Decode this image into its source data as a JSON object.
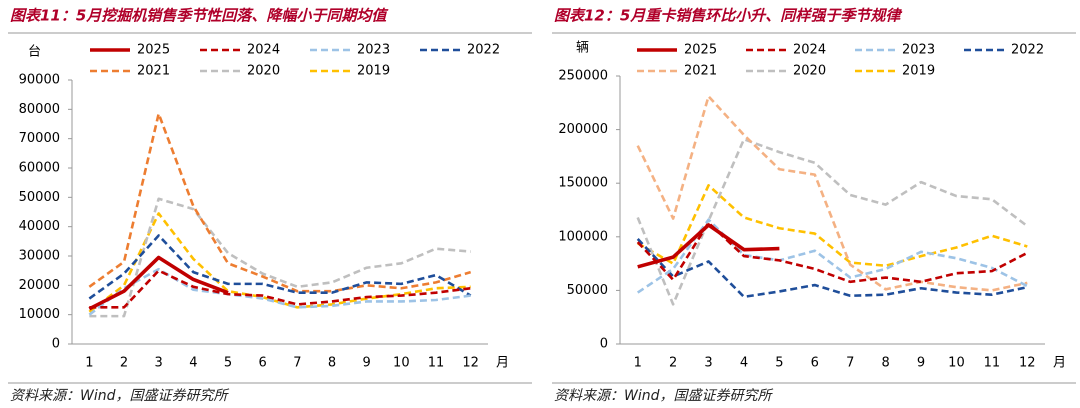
{
  "chart_data": [
    {
      "type": "line",
      "title": "图表11：5月挖掘机销售季节性回落、降幅小于同期均值",
      "source": "资料来源：Wind，国盛证券研究所",
      "ylabel": "台",
      "xlabel": "月",
      "categories": [
        "1",
        "2",
        "3",
        "4",
        "5",
        "6",
        "7",
        "8",
        "9",
        "10",
        "11",
        "12"
      ],
      "ylim": [
        0,
        90000
      ],
      "yticks": [
        0,
        10000,
        20000,
        30000,
        40000,
        50000,
        60000,
        70000,
        80000,
        90000
      ],
      "series": [
        {
          "name": "2025",
          "color": "#c00000",
          "dashed": false,
          "values": [
            12000,
            18000,
            29500,
            22000,
            17500,
            null,
            null,
            null,
            null,
            null,
            null,
            null
          ]
        },
        {
          "name": "2024",
          "color": "#c00000",
          "dashed": true,
          "values": [
            12500,
            12500,
            25000,
            19500,
            17000,
            16500,
            13500,
            14500,
            16000,
            16500,
            17500,
            19000
          ]
        },
        {
          "name": "2023",
          "color": "#9dc3e6",
          "dashed": true,
          "values": [
            10000,
            19000,
            25500,
            18500,
            17000,
            15500,
            12500,
            13000,
            14500,
            14500,
            15000,
            16500
          ]
        },
        {
          "name": "2022",
          "color": "#1f4e9a",
          "dashed": true,
          "values": [
            15500,
            24000,
            37000,
            24500,
            20500,
            20500,
            17500,
            17500,
            21000,
            20500,
            23500,
            16500
          ]
        },
        {
          "name": "2021",
          "color": "#ed7d31",
          "dashed": true,
          "values": [
            19500,
            28000,
            78500,
            47000,
            27500,
            23000,
            18000,
            18000,
            20000,
            19000,
            21000,
            24500
          ]
        },
        {
          "name": "2020",
          "color": "#bfbfbf",
          "dashed": true,
          "values": [
            9500,
            9500,
            49500,
            46000,
            31000,
            24000,
            19500,
            21000,
            26000,
            27500,
            32500,
            31500
          ]
        },
        {
          "name": "2019",
          "color": "#ffc000",
          "dashed": true,
          "values": [
            11000,
            20000,
            44500,
            29000,
            18000,
            16000,
            12500,
            13500,
            15500,
            17000,
            19000,
            19500
          ]
        }
      ]
    },
    {
      "type": "line",
      "title": "图表12：5月重卡销售环比小升、同样强于季节规律",
      "source": "资料来源：Wind，国盛证券研究所",
      "ylabel": "辆",
      "xlabel": "月",
      "categories": [
        "1",
        "2",
        "3",
        "4",
        "5",
        "6",
        "7",
        "8",
        "9",
        "10",
        "11",
        "12"
      ],
      "ylim": [
        0,
        250000
      ],
      "yticks": [
        0,
        50000,
        100000,
        150000,
        200000,
        250000
      ],
      "series": [
        {
          "name": "2025",
          "color": "#c00000",
          "dashed": false,
          "values": [
            72000,
            81000,
            111000,
            88000,
            89000,
            null,
            null,
            null,
            null,
            null,
            null,
            null
          ]
        },
        {
          "name": "2024",
          "color": "#c00000",
          "dashed": true,
          "values": [
            95000,
            60000,
            113000,
            82000,
            78000,
            70000,
            58000,
            62000,
            58000,
            66000,
            68000,
            85000
          ]
        },
        {
          "name": "2023",
          "color": "#9dc3e6",
          "dashed": true,
          "values": [
            48000,
            70000,
            116000,
            83000,
            78000,
            87000,
            62000,
            70000,
            86000,
            80000,
            71000,
            54000
          ]
        },
        {
          "name": "2022",
          "color": "#1f4e9a",
          "dashed": true,
          "values": [
            98000,
            63000,
            77000,
            44000,
            49000,
            55000,
            45000,
            46000,
            52000,
            48000,
            46000,
            53000
          ]
        },
        {
          "name": "2021",
          "color": "#f4b183",
          "dashed": true,
          "values": [
            185000,
            117000,
            231000,
            195000,
            163000,
            158000,
            74000,
            51000,
            58000,
            53000,
            50000,
            57000
          ]
        },
        {
          "name": "2020",
          "color": "#bfbfbf",
          "dashed": true,
          "values": [
            118000,
            37000,
            115000,
            191000,
            179000,
            169000,
            139000,
            130000,
            151000,
            138000,
            135000,
            110000
          ]
        },
        {
          "name": "2019",
          "color": "#ffc000",
          "dashed": true,
          "values": [
            94000,
            75000,
            148000,
            118000,
            108000,
            103000,
            76000,
            73000,
            82000,
            90000,
            101000,
            91000
          ]
        }
      ]
    }
  ]
}
